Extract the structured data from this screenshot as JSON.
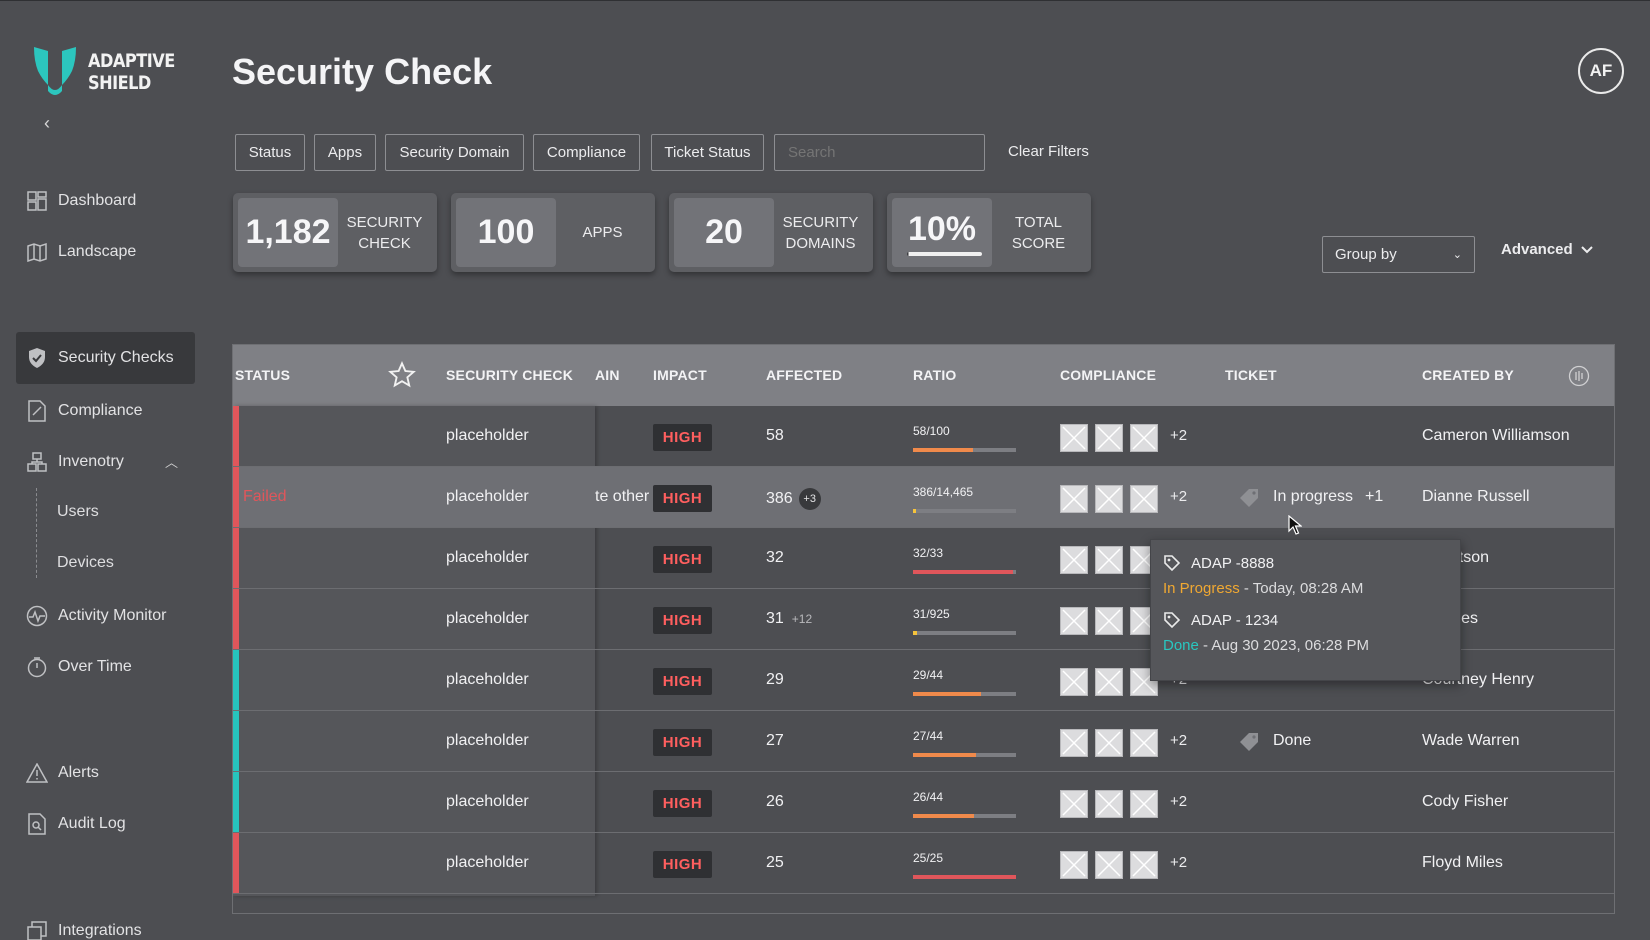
{
  "app": {
    "logo_line1": "ADAPTIVE",
    "logo_line2": "SHIELD",
    "collapse": "‹"
  },
  "sidebar": {
    "items": [
      {
        "label": "Dashboard",
        "icon": "dashboard-icon"
      },
      {
        "label": "Landscape",
        "icon": "map-icon"
      },
      {
        "label": "Security Checks",
        "icon": "shield-icon",
        "active": true
      },
      {
        "label": "Compliance",
        "icon": "document-icon"
      },
      {
        "label": "Invenotry",
        "icon": "inventory-icon",
        "expanded": true
      },
      {
        "label": "Activity Monitor",
        "icon": "activity-icon"
      },
      {
        "label": "Over Time",
        "icon": "stopwatch-icon"
      },
      {
        "label": "Alerts",
        "icon": "alert-icon"
      },
      {
        "label": "Audit Log",
        "icon": "audit-icon"
      },
      {
        "label": "Integrations",
        "icon": "integrations-icon"
      }
    ],
    "sub_items": [
      "Users",
      "Devices"
    ]
  },
  "header": {
    "title": "Security Check",
    "avatar": "AF"
  },
  "filters": {
    "buttons": [
      "Status",
      "Apps",
      "Security Domain",
      "Compliance",
      "Ticket Status"
    ],
    "search_placeholder": "Search",
    "clear": "Clear Filters"
  },
  "stats": [
    {
      "value": "1,182",
      "label": "SECURITY CHECK"
    },
    {
      "value": "100",
      "label": "APPS"
    },
    {
      "value": "20",
      "label": "SECURITY DOMAINS"
    },
    {
      "value": "10%",
      "label": "TOTAL SCORE",
      "fill": 0.1
    }
  ],
  "toolbar": {
    "group_by": "Group by",
    "advanced": "Advanced"
  },
  "table": {
    "columns": [
      "Status",
      "Security Check",
      "ain",
      "Impact",
      "Affected",
      "Ratio",
      "Compliance",
      "Ticket",
      "Created By"
    ],
    "rows": [
      {
        "status": "",
        "strip": "#e0565b",
        "check": "placeholder",
        "domain": "",
        "impact": "HIGH",
        "affected": "58",
        "extra": "",
        "ratio": "58/100",
        "fill": 0.58,
        "fill_color": "#f08a4b",
        "more": "+2",
        "ticket": "",
        "created_by": "Cameron Williamson"
      },
      {
        "status": "Failed",
        "strip": "#e0565b",
        "check": "placeholder",
        "domain": "te other",
        "impact": "HIGH",
        "affected": "386",
        "extra": "+3",
        "ratio": "386/14,465",
        "fill": 0.027,
        "fill_color": "#f5c33b",
        "more": "+2",
        "ticket": "In progress",
        "ticket_more": "+1",
        "created_by": "Dianne Russell",
        "highlight": true
      },
      {
        "status": "",
        "strip": "#e0565b",
        "check": "placeholder",
        "domain": "",
        "impact": "HIGH",
        "affected": "32",
        "extra": "",
        "ratio": "32/33",
        "fill": 0.97,
        "fill_color": "#e0565b",
        "more": "+2",
        "ticket": "",
        "created_by": "n Watson"
      },
      {
        "status": "",
        "strip": "#e0565b",
        "check": "placeholder",
        "domain": "",
        "impact": "HIGH",
        "affected": "31",
        "extra": "+12",
        "ratio": "31/925",
        "fill": 0.034,
        "fill_color": "#f5c33b",
        "more": "+2",
        "ticket": "",
        "created_by": "o Jones"
      },
      {
        "status": "",
        "strip": "#27c4bd",
        "check": "placeholder",
        "domain": "",
        "impact": "HIGH",
        "affected": "29",
        "extra": "",
        "ratio": "29/44",
        "fill": 0.66,
        "fill_color": "#f08a4b",
        "more": "+2",
        "ticket": "",
        "created_by": "Courtney Henry"
      },
      {
        "status": "",
        "strip": "#27c4bd",
        "check": "placeholder",
        "domain": "",
        "impact": "HIGH",
        "affected": "27",
        "extra": "",
        "ratio": "27/44",
        "fill": 0.61,
        "fill_color": "#f08a4b",
        "more": "+2",
        "ticket": "Done",
        "created_by": "Wade Warren"
      },
      {
        "status": "",
        "strip": "#27c4bd",
        "check": "placeholder",
        "domain": "",
        "impact": "HIGH",
        "affected": "26",
        "extra": "",
        "ratio": "26/44",
        "fill": 0.59,
        "fill_color": "#f08a4b",
        "more": "+2",
        "ticket": "",
        "created_by": "Cody Fisher"
      },
      {
        "status": "",
        "strip": "#e0565b",
        "check": "placeholder",
        "domain": "",
        "impact": "HIGH",
        "affected": "25",
        "extra": "",
        "ratio": "25/25",
        "fill": 1.0,
        "fill_color": "#e0565b",
        "more": "+2",
        "ticket": "",
        "created_by": "Floyd Miles"
      }
    ]
  },
  "tooltip": {
    "items": [
      {
        "id": "ADAP -8888",
        "status": "In Progress",
        "date": " - Today, 08:28 AM"
      },
      {
        "id": "ADAP - 1234",
        "status": "Done",
        "date": " - Aug 30 2023, 06:28 PM"
      }
    ]
  },
  "colors": {
    "background": "#4d4e52",
    "failed": "#e0565b",
    "passed": "#27c4bd",
    "high": "#ff5f5f",
    "in_progress": "#f0a832",
    "done": "#29c7c0",
    "logo": "#2cc6be"
  }
}
